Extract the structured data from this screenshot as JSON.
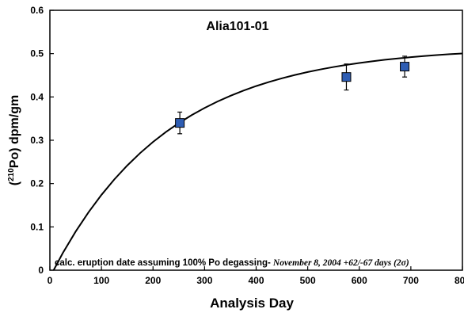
{
  "chart_data": {
    "type": "scatter",
    "title": "Alia101-01",
    "xlabel": "Analysis Day",
    "ylabel": "(210Po) dpm/gm",
    "ylabel_parts": {
      "open": "(",
      "sup": "210",
      "rest": "Po) dpm/gm"
    },
    "xlim": [
      0,
      800
    ],
    "ylim": [
      0,
      0.6
    ],
    "x_ticks": [
      "0",
      "100",
      "200",
      "300",
      "400",
      "500",
      "600",
      "700",
      "800"
    ],
    "y_ticks": [
      "0",
      "0.1",
      "0.2",
      "0.3",
      "0.4",
      "0.5",
      "0.6"
    ],
    "points": [
      {
        "x": 252,
        "y": 0.34,
        "err": 0.025
      },
      {
        "x": 575,
        "y": 0.446,
        "err": 0.03
      },
      {
        "x": 688,
        "y": 0.47,
        "err": 0.024
      }
    ],
    "fit_curve": {
      "x": [
        0,
        25,
        50,
        75,
        100,
        125,
        150,
        175,
        200,
        225,
        250,
        275,
        300,
        325,
        350,
        375,
        400,
        425,
        450,
        475,
        500,
        525,
        550,
        575,
        600,
        625,
        650,
        675,
        700,
        725,
        750,
        775,
        800
      ],
      "y": [
        -0.016,
        0.0395,
        0.0893,
        0.1339,
        0.1739,
        0.2097,
        0.2417,
        0.2704,
        0.2961,
        0.3191,
        0.3396,
        0.3581,
        0.3746,
        0.3894,
        0.4026,
        0.4145,
        0.4251,
        0.4346,
        0.443,
        0.4507,
        0.4575,
        0.4636,
        0.4691,
        0.474,
        0.4784,
        0.4823,
        0.4858,
        0.4889,
        0.4918,
        0.4943,
        0.4966,
        0.4986,
        0.5004
      ]
    },
    "annotation": {
      "part1": "calc. eruption date assuming 100% Po degassing-",
      "part2": "November 8, 2004 +62/-67 days (2σ)"
    },
    "marker_color": "#2e5db3",
    "grid": false,
    "legend": "none"
  }
}
